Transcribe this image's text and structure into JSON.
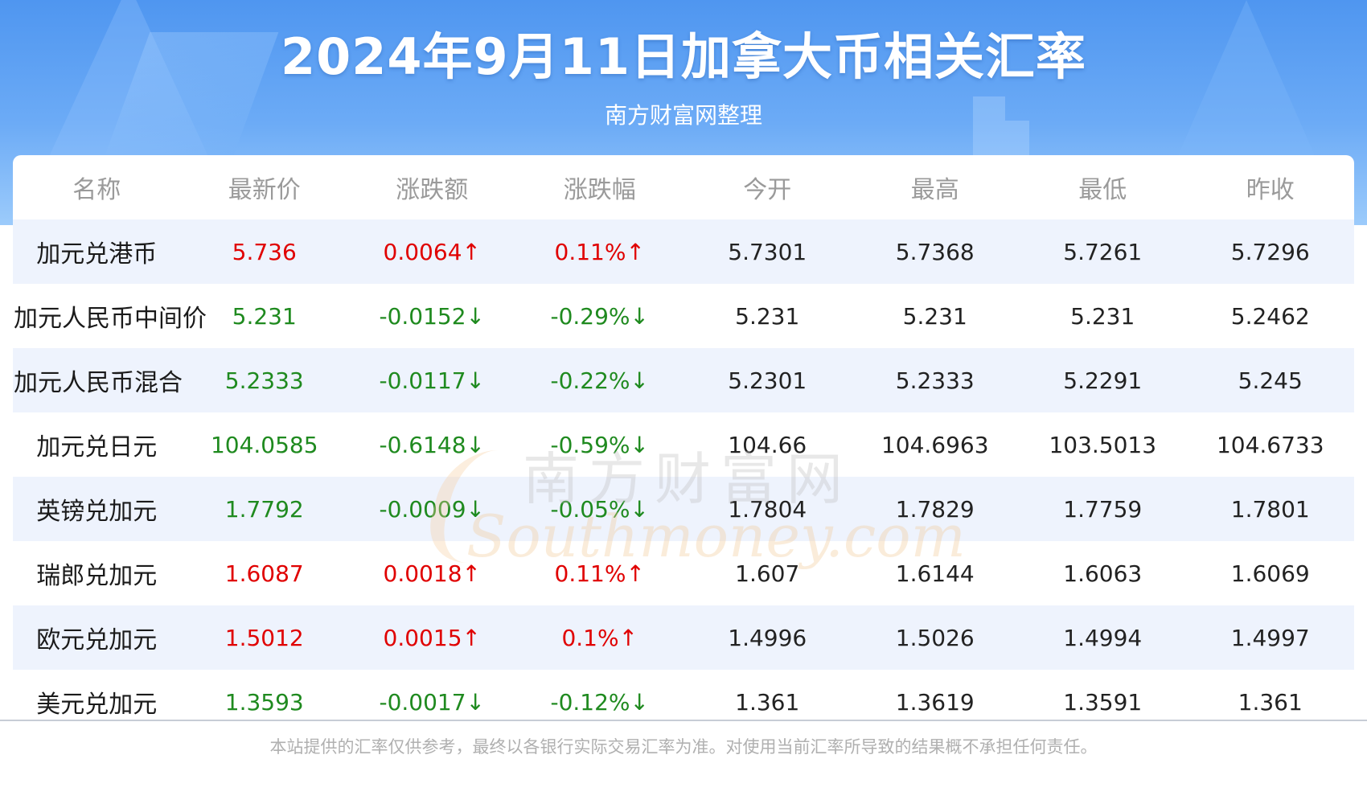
{
  "header": {
    "title": "2024年9月11日加拿大币相关汇率",
    "subtitle": "南方财富网整理"
  },
  "table": {
    "columns": [
      "名称",
      "最新价",
      "涨跌额",
      "涨跌幅",
      "今开",
      "最高",
      "最低",
      "昨收"
    ],
    "rows": [
      {
        "name": "加元兑港币",
        "latest": "5.736",
        "change": "0.0064↑",
        "pct": "0.11%↑",
        "open": "5.7301",
        "high": "5.7368",
        "low": "5.7261",
        "prev": "5.7296",
        "dir": "up"
      },
      {
        "name": "加元人民币中间价",
        "latest": "5.231",
        "change": "-0.0152↓",
        "pct": "-0.29%↓",
        "open": "5.231",
        "high": "5.231",
        "low": "5.231",
        "prev": "5.2462",
        "dir": "down"
      },
      {
        "name": "加元人民币混合",
        "latest": "5.2333",
        "change": "-0.0117↓",
        "pct": "-0.22%↓",
        "open": "5.2301",
        "high": "5.2333",
        "low": "5.2291",
        "prev": "5.245",
        "dir": "down"
      },
      {
        "name": "加元兑日元",
        "latest": "104.0585",
        "change": "-0.6148↓",
        "pct": "-0.59%↓",
        "open": "104.66",
        "high": "104.6963",
        "low": "103.5013",
        "prev": "104.6733",
        "dir": "down"
      },
      {
        "name": "英镑兑加元",
        "latest": "1.7792",
        "change": "-0.0009↓",
        "pct": "-0.05%↓",
        "open": "1.7804",
        "high": "1.7829",
        "low": "1.7759",
        "prev": "1.7801",
        "dir": "down"
      },
      {
        "name": "瑞郎兑加元",
        "latest": "1.6087",
        "change": "0.0018↑",
        "pct": "0.11%↑",
        "open": "1.607",
        "high": "1.6144",
        "low": "1.6063",
        "prev": "1.6069",
        "dir": "up"
      },
      {
        "name": "欧元兑加元",
        "latest": "1.5012",
        "change": "0.0015↑",
        "pct": "0.1%↑",
        "open": "1.4996",
        "high": "1.5026",
        "low": "1.4994",
        "prev": "1.4997",
        "dir": "up"
      },
      {
        "name": "美元兑加元",
        "latest": "1.3593",
        "change": "-0.0017↓",
        "pct": "-0.12%↓",
        "open": "1.361",
        "high": "1.3619",
        "low": "1.3591",
        "prev": "1.361",
        "dir": "down"
      }
    ]
  },
  "watermark": {
    "cn": "南方财富网",
    "en": "Southmoney.com"
  },
  "footer": {
    "disclaimer": "本站提供的汇率仅供参考，最终以各银行实际交易汇率为准。对使用当前汇率所导致的结果概不承担任何责任。"
  },
  "colors": {
    "up": "#e00000",
    "down": "#1f8a1f",
    "banner": "#5a9ef2",
    "row_alt": "#eef3fd"
  }
}
